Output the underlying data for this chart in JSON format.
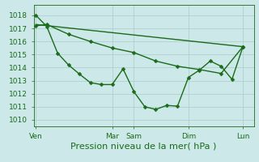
{
  "bg_color": "#cce8e8",
  "grid_color": "#aacccc",
  "line_color": "#1a6b1a",
  "ylim": [
    1009.5,
    1018.8
  ],
  "yticks": [
    1010,
    1011,
    1012,
    1013,
    1014,
    1015,
    1016,
    1017,
    1018
  ],
  "xlabel": "Pression niveau de la mer( hPa )",
  "xlabel_fontsize": 8,
  "tick_fontsize": 6.5,
  "xtick_labels": [
    "Ven",
    "Mar",
    "Sam",
    "Dim",
    "Lun"
  ],
  "xtick_positions": [
    0.0,
    3.5,
    4.5,
    7.0,
    9.5
  ],
  "xlim": [
    -0.1,
    10.0
  ],
  "line1_x": [
    0.0,
    0.5,
    1.0,
    1.5,
    2.0,
    2.5,
    3.0,
    3.5,
    4.0,
    4.5,
    5.0,
    5.5,
    6.0,
    6.5,
    7.0,
    7.5,
    8.0,
    8.5,
    9.0,
    9.5
  ],
  "line1_y": [
    1018.0,
    1017.15,
    1015.1,
    1014.2,
    1013.5,
    1012.85,
    1012.7,
    1012.7,
    1013.9,
    1012.15,
    1011.0,
    1010.8,
    1011.1,
    1011.05,
    1013.25,
    1013.8,
    1014.5,
    1014.1,
    1013.1,
    1015.6
  ],
  "line2_x": [
    0.0,
    0.5,
    1.5,
    2.5,
    3.5,
    4.5,
    5.5,
    6.5,
    7.5,
    8.5,
    9.5
  ],
  "line2_y": [
    1017.2,
    1017.3,
    1016.55,
    1016.0,
    1015.5,
    1015.15,
    1014.5,
    1014.1,
    1013.85,
    1013.55,
    1015.6
  ],
  "line3_x": [
    0.0,
    9.5
  ],
  "line3_y": [
    1017.3,
    1015.6
  ],
  "marker_size": 2.5,
  "linewidth": 1.0
}
